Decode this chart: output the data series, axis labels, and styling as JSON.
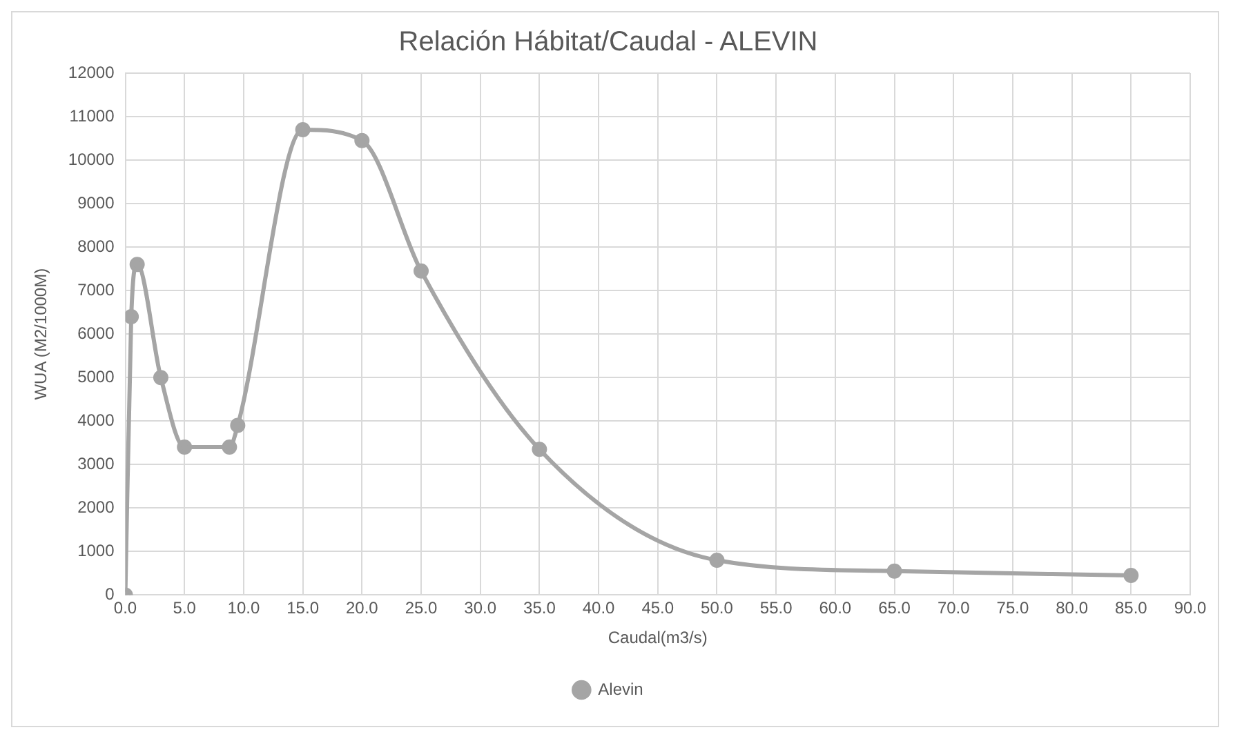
{
  "chart_data": {
    "type": "line",
    "title": "Relación Hábitat/Caudal - ALEVIN",
    "xlabel": "Caudal(m3/s)",
    "ylabel": "WUA (M2/1000M)",
    "series": [
      {
        "name": "Alevin",
        "color": "#a5a5a5",
        "x": [
          0,
          0.5,
          1,
          3,
          5,
          8.8,
          9.5,
          15,
          20,
          25,
          35,
          50,
          65,
          85
        ],
        "values": [
          0,
          6400,
          7600,
          5000,
          3400,
          3400,
          3900,
          10700,
          10450,
          7450,
          3350,
          800,
          550,
          450
        ]
      }
    ],
    "xlim": [
      0,
      90
    ],
    "xticks": [
      {
        "value": 0,
        "label": "0.0"
      },
      {
        "value": 5,
        "label": "5.0"
      },
      {
        "value": 10,
        "label": "10.0"
      },
      {
        "value": 15,
        "label": "15.0"
      },
      {
        "value": 20,
        "label": "20.0"
      },
      {
        "value": 25,
        "label": "25.0"
      },
      {
        "value": 30,
        "label": "30.0"
      },
      {
        "value": 35,
        "label": "35.0"
      },
      {
        "value": 40,
        "label": "40.0"
      },
      {
        "value": 45,
        "label": "45.0"
      },
      {
        "value": 50,
        "label": "50.0"
      },
      {
        "value": 55,
        "label": "55.0"
      },
      {
        "value": 60,
        "label": "60.0"
      },
      {
        "value": 65,
        "label": "65.0"
      },
      {
        "value": 70,
        "label": "70.0"
      },
      {
        "value": 75,
        "label": "75.0"
      },
      {
        "value": 80,
        "label": "80.0"
      },
      {
        "value": 85,
        "label": "85.0"
      },
      {
        "value": 90,
        "label": "90.0"
      }
    ],
    "ylim": [
      0,
      12000
    ],
    "yticks": [
      0,
      1000,
      2000,
      3000,
      4000,
      5000,
      6000,
      7000,
      8000,
      9000,
      10000,
      11000,
      12000
    ],
    "grid": true,
    "legend": "bottom",
    "marker": "circle",
    "line_style": "solid"
  }
}
